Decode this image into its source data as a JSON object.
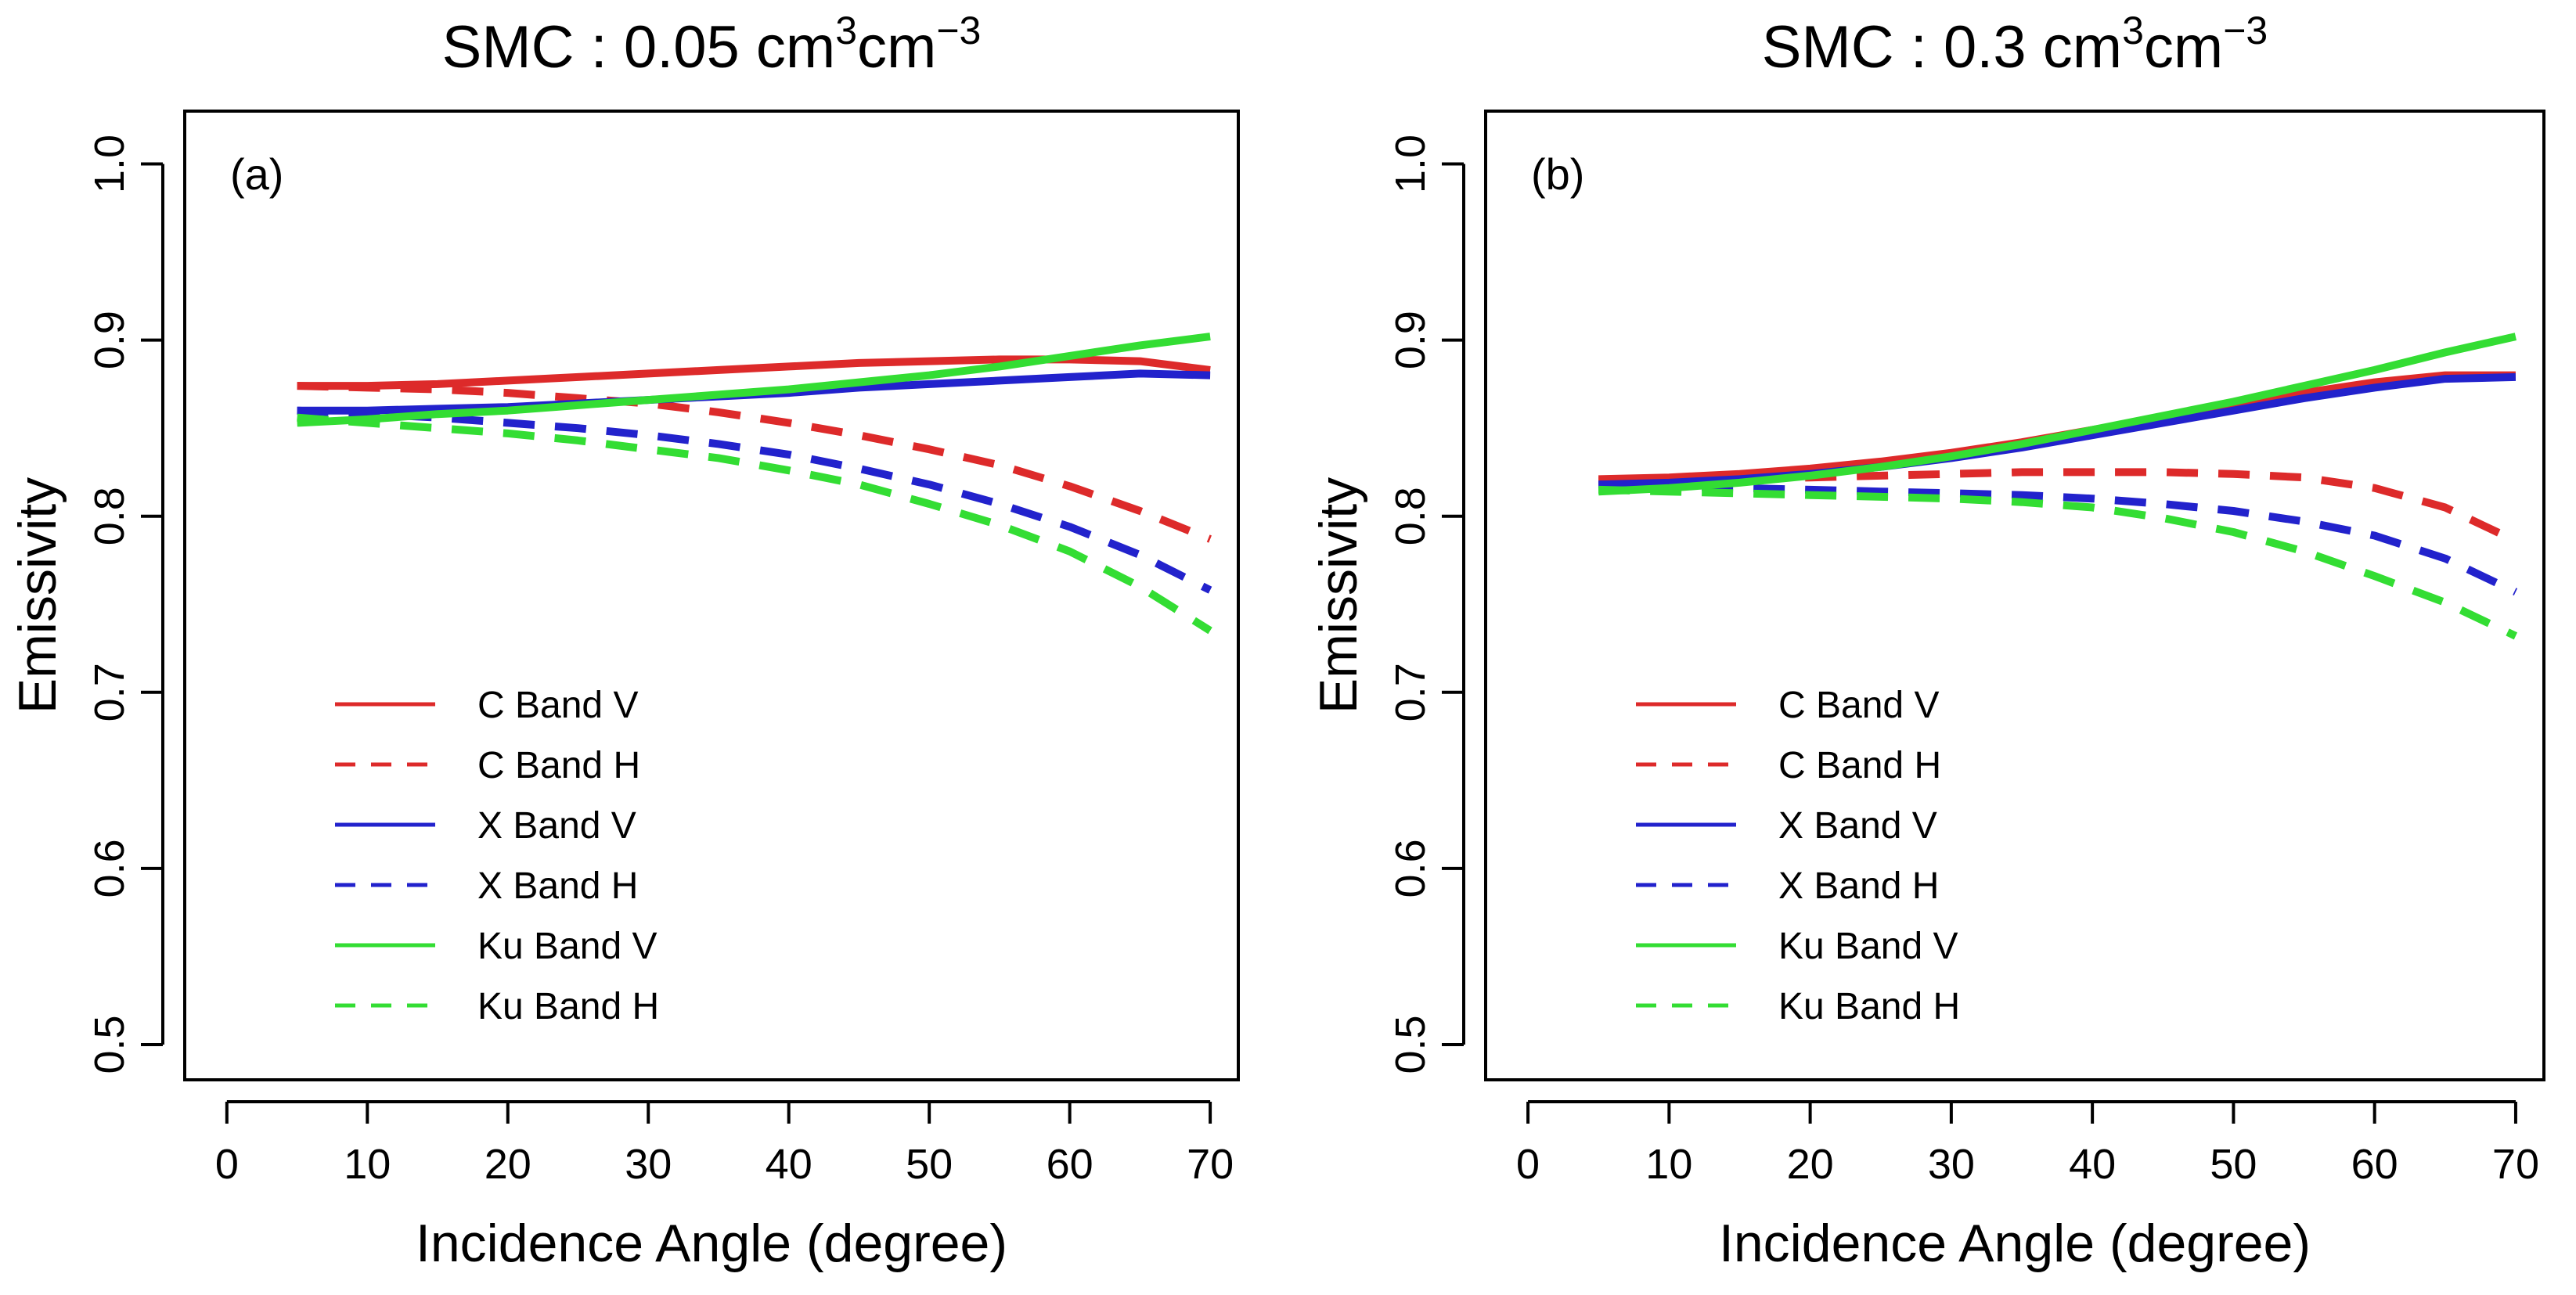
{
  "chart_data": [
    {
      "type": "line",
      "panel_label": "(a)",
      "title": {
        "prefix": "SMC : 0.05 cm",
        "exp1": "3",
        "mid": "cm",
        "exp2": "−3"
      },
      "xlabel": "Incidence Angle (degree)",
      "ylabel": "Emissivity",
      "xlim": [
        -3,
        72
      ],
      "ylim": [
        0.48,
        1.03
      ],
      "xticks": [
        0,
        10,
        20,
        30,
        40,
        50,
        60,
        70
      ],
      "xtick_labels": [
        "0",
        "10",
        "20",
        "30",
        "40",
        "50",
        "60",
        "70"
      ],
      "yticks": [
        0.5,
        0.6,
        0.7,
        0.8,
        0.9,
        1.0
      ],
      "ytick_labels": [
        "0.5",
        "0.6",
        "0.7",
        "0.8",
        "0.9",
        "1.0"
      ],
      "legend_position": "bottom-left",
      "x": [
        5,
        10,
        15,
        20,
        25,
        30,
        35,
        40,
        45,
        50,
        55,
        60,
        65,
        70
      ],
      "series": [
        {
          "name": "C Band V",
          "color": "#dd2a2a",
          "dash": "solid",
          "values": [
            0.874,
            0.874,
            0.875,
            0.877,
            0.879,
            0.881,
            0.883,
            0.885,
            0.887,
            0.888,
            0.889,
            0.889,
            0.888,
            0.883
          ]
        },
        {
          "name": "C Band H",
          "color": "#dd2a2a",
          "dash": "dashed",
          "values": [
            0.874,
            0.873,
            0.872,
            0.87,
            0.867,
            0.864,
            0.859,
            0.853,
            0.846,
            0.838,
            0.829,
            0.817,
            0.803,
            0.787
          ]
        },
        {
          "name": "X Band V",
          "color": "#2222cc",
          "dash": "solid",
          "values": [
            0.86,
            0.86,
            0.861,
            0.862,
            0.864,
            0.866,
            0.868,
            0.87,
            0.873,
            0.875,
            0.877,
            0.879,
            0.881,
            0.88
          ]
        },
        {
          "name": "X Band H",
          "color": "#2222cc",
          "dash": "dashed",
          "values": [
            0.86,
            0.858,
            0.856,
            0.853,
            0.85,
            0.846,
            0.841,
            0.835,
            0.827,
            0.818,
            0.807,
            0.794,
            0.778,
            0.758
          ]
        },
        {
          "name": "Ku Band V",
          "color": "#33dd33",
          "dash": "solid",
          "values": [
            0.853,
            0.855,
            0.858,
            0.86,
            0.863,
            0.866,
            0.869,
            0.872,
            0.876,
            0.88,
            0.885,
            0.891,
            0.897,
            0.902
          ]
        },
        {
          "name": "Ku Band H",
          "color": "#33dd33",
          "dash": "dashed",
          "values": [
            0.856,
            0.853,
            0.85,
            0.847,
            0.843,
            0.838,
            0.833,
            0.826,
            0.818,
            0.807,
            0.795,
            0.78,
            0.76,
            0.735
          ]
        }
      ]
    },
    {
      "type": "line",
      "panel_label": "(b)",
      "title": {
        "prefix": "SMC : 0.3 cm",
        "exp1": "3",
        "mid": "cm",
        "exp2": "−3"
      },
      "xlabel": "Incidence Angle (degree)",
      "ylabel": "Emissivity",
      "xlim": [
        -3,
        72
      ],
      "ylim": [
        0.48,
        1.03
      ],
      "xticks": [
        0,
        10,
        20,
        30,
        40,
        50,
        60,
        70
      ],
      "xtick_labels": [
        "0",
        "10",
        "20",
        "30",
        "40",
        "50",
        "60",
        "70"
      ],
      "yticks": [
        0.5,
        0.6,
        0.7,
        0.8,
        0.9,
        1.0
      ],
      "ytick_labels": [
        "0.5",
        "0.6",
        "0.7",
        "0.8",
        "0.9",
        "1.0"
      ],
      "legend_position": "bottom-left",
      "x": [
        5,
        10,
        15,
        20,
        25,
        30,
        35,
        40,
        45,
        50,
        55,
        60,
        65,
        70
      ],
      "series": [
        {
          "name": "C Band V",
          "color": "#dd2a2a",
          "dash": "solid",
          "values": [
            0.821,
            0.822,
            0.824,
            0.827,
            0.831,
            0.836,
            0.842,
            0.849,
            0.856,
            0.863,
            0.87,
            0.876,
            0.88,
            0.88
          ]
        },
        {
          "name": "C Band H",
          "color": "#dd2a2a",
          "dash": "dashed",
          "values": [
            0.82,
            0.82,
            0.821,
            0.822,
            0.823,
            0.824,
            0.825,
            0.825,
            0.825,
            0.824,
            0.822,
            0.816,
            0.805,
            0.786
          ]
        },
        {
          "name": "X Band V",
          "color": "#2222cc",
          "dash": "solid",
          "values": [
            0.818,
            0.819,
            0.821,
            0.824,
            0.828,
            0.833,
            0.839,
            0.846,
            0.853,
            0.86,
            0.867,
            0.873,
            0.878,
            0.879
          ]
        },
        {
          "name": "X Band H",
          "color": "#2222cc",
          "dash": "dashed",
          "values": [
            0.818,
            0.817,
            0.816,
            0.815,
            0.814,
            0.813,
            0.812,
            0.81,
            0.807,
            0.803,
            0.797,
            0.789,
            0.776,
            0.757
          ]
        },
        {
          "name": "Ku Band V",
          "color": "#33dd33",
          "dash": "solid",
          "values": [
            0.814,
            0.816,
            0.819,
            0.823,
            0.828,
            0.834,
            0.841,
            0.849,
            0.857,
            0.865,
            0.874,
            0.883,
            0.893,
            0.902
          ]
        },
        {
          "name": "Ku Band H",
          "color": "#33dd33",
          "dash": "dashed",
          "values": [
            0.815,
            0.814,
            0.813,
            0.812,
            0.811,
            0.81,
            0.808,
            0.805,
            0.799,
            0.791,
            0.78,
            0.766,
            0.751,
            0.732
          ]
        }
      ]
    }
  ]
}
